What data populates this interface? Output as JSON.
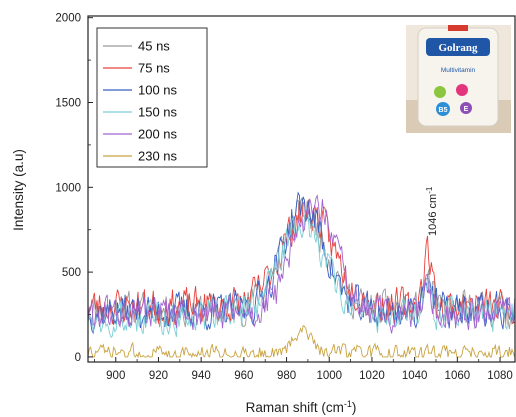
{
  "chart_data": {
    "type": "line",
    "title": "",
    "xlabel": "Raman shift (cm",
    "xlabel_sup": "-1",
    "xlabel_close": ")",
    "ylabel": "Intensity (a.u)",
    "xlim": [
      887,
      1087
    ],
    "ylim": [
      -30,
      2010
    ],
    "x_ticks": [
      900,
      920,
      940,
      960,
      980,
      1000,
      1020,
      1040,
      1060,
      1080
    ],
    "x_tick_labels": [
      "900",
      "920",
      "940",
      "960",
      "980",
      "1000",
      "1020",
      "1040",
      "1060",
      "1080"
    ],
    "y_ticks": [
      0,
      500,
      1000,
      1500,
      2000
    ],
    "y_tick_labels": [
      "0",
      "500",
      "1000",
      "1500",
      "2000"
    ],
    "grid": false,
    "legend_position": "top-left",
    "annotation": {
      "text": "1046 cm",
      "sup": "-1",
      "x": 1046,
      "y": 640
    },
    "inset": {
      "label": "Golrang",
      "sub_label": "Multivitamin",
      "badges": [
        "B5",
        "E"
      ]
    },
    "series": [
      {
        "name": "45 ns",
        "color": "#9a9a9a",
        "baseline": 280,
        "noise": 140,
        "seed": 11,
        "peaks": [
          {
            "x": 988,
            "h": 570,
            "w": 11
          },
          {
            "x": 1046,
            "h": 170,
            "w": 2
          }
        ]
      },
      {
        "name": "75 ns",
        "color": "#e8413c",
        "baseline": 300,
        "noise": 150,
        "seed": 23,
        "peaks": [
          {
            "x": 990,
            "h": 560,
            "w": 12
          },
          {
            "x": 1046,
            "h": 330,
            "w": 2
          }
        ]
      },
      {
        "name": "100 ns",
        "color": "#3b5fc4",
        "baseline": 270,
        "noise": 150,
        "seed": 37,
        "peaks": [
          {
            "x": 988,
            "h": 620,
            "w": 10
          },
          {
            "x": 1046,
            "h": 220,
            "w": 2
          }
        ]
      },
      {
        "name": "150 ns",
        "color": "#7ccfd6",
        "baseline": 240,
        "noise": 140,
        "seed": 49,
        "peaks": [
          {
            "x": 988,
            "h": 540,
            "w": 11
          },
          {
            "x": 1046,
            "h": 180,
            "w": 2
          }
        ]
      },
      {
        "name": "200 ns",
        "color": "#a464cf",
        "baseline": 250,
        "noise": 140,
        "seed": 61,
        "peaks": [
          {
            "x": 993,
            "h": 650,
            "w": 10
          },
          {
            "x": 1046,
            "h": 200,
            "w": 2
          }
        ]
      },
      {
        "name": "230 ns",
        "color": "#caa341",
        "baseline": 20,
        "noise": 70,
        "seed": 73,
        "peaks": [
          {
            "x": 988,
            "h": 160,
            "w": 4
          }
        ]
      }
    ]
  }
}
